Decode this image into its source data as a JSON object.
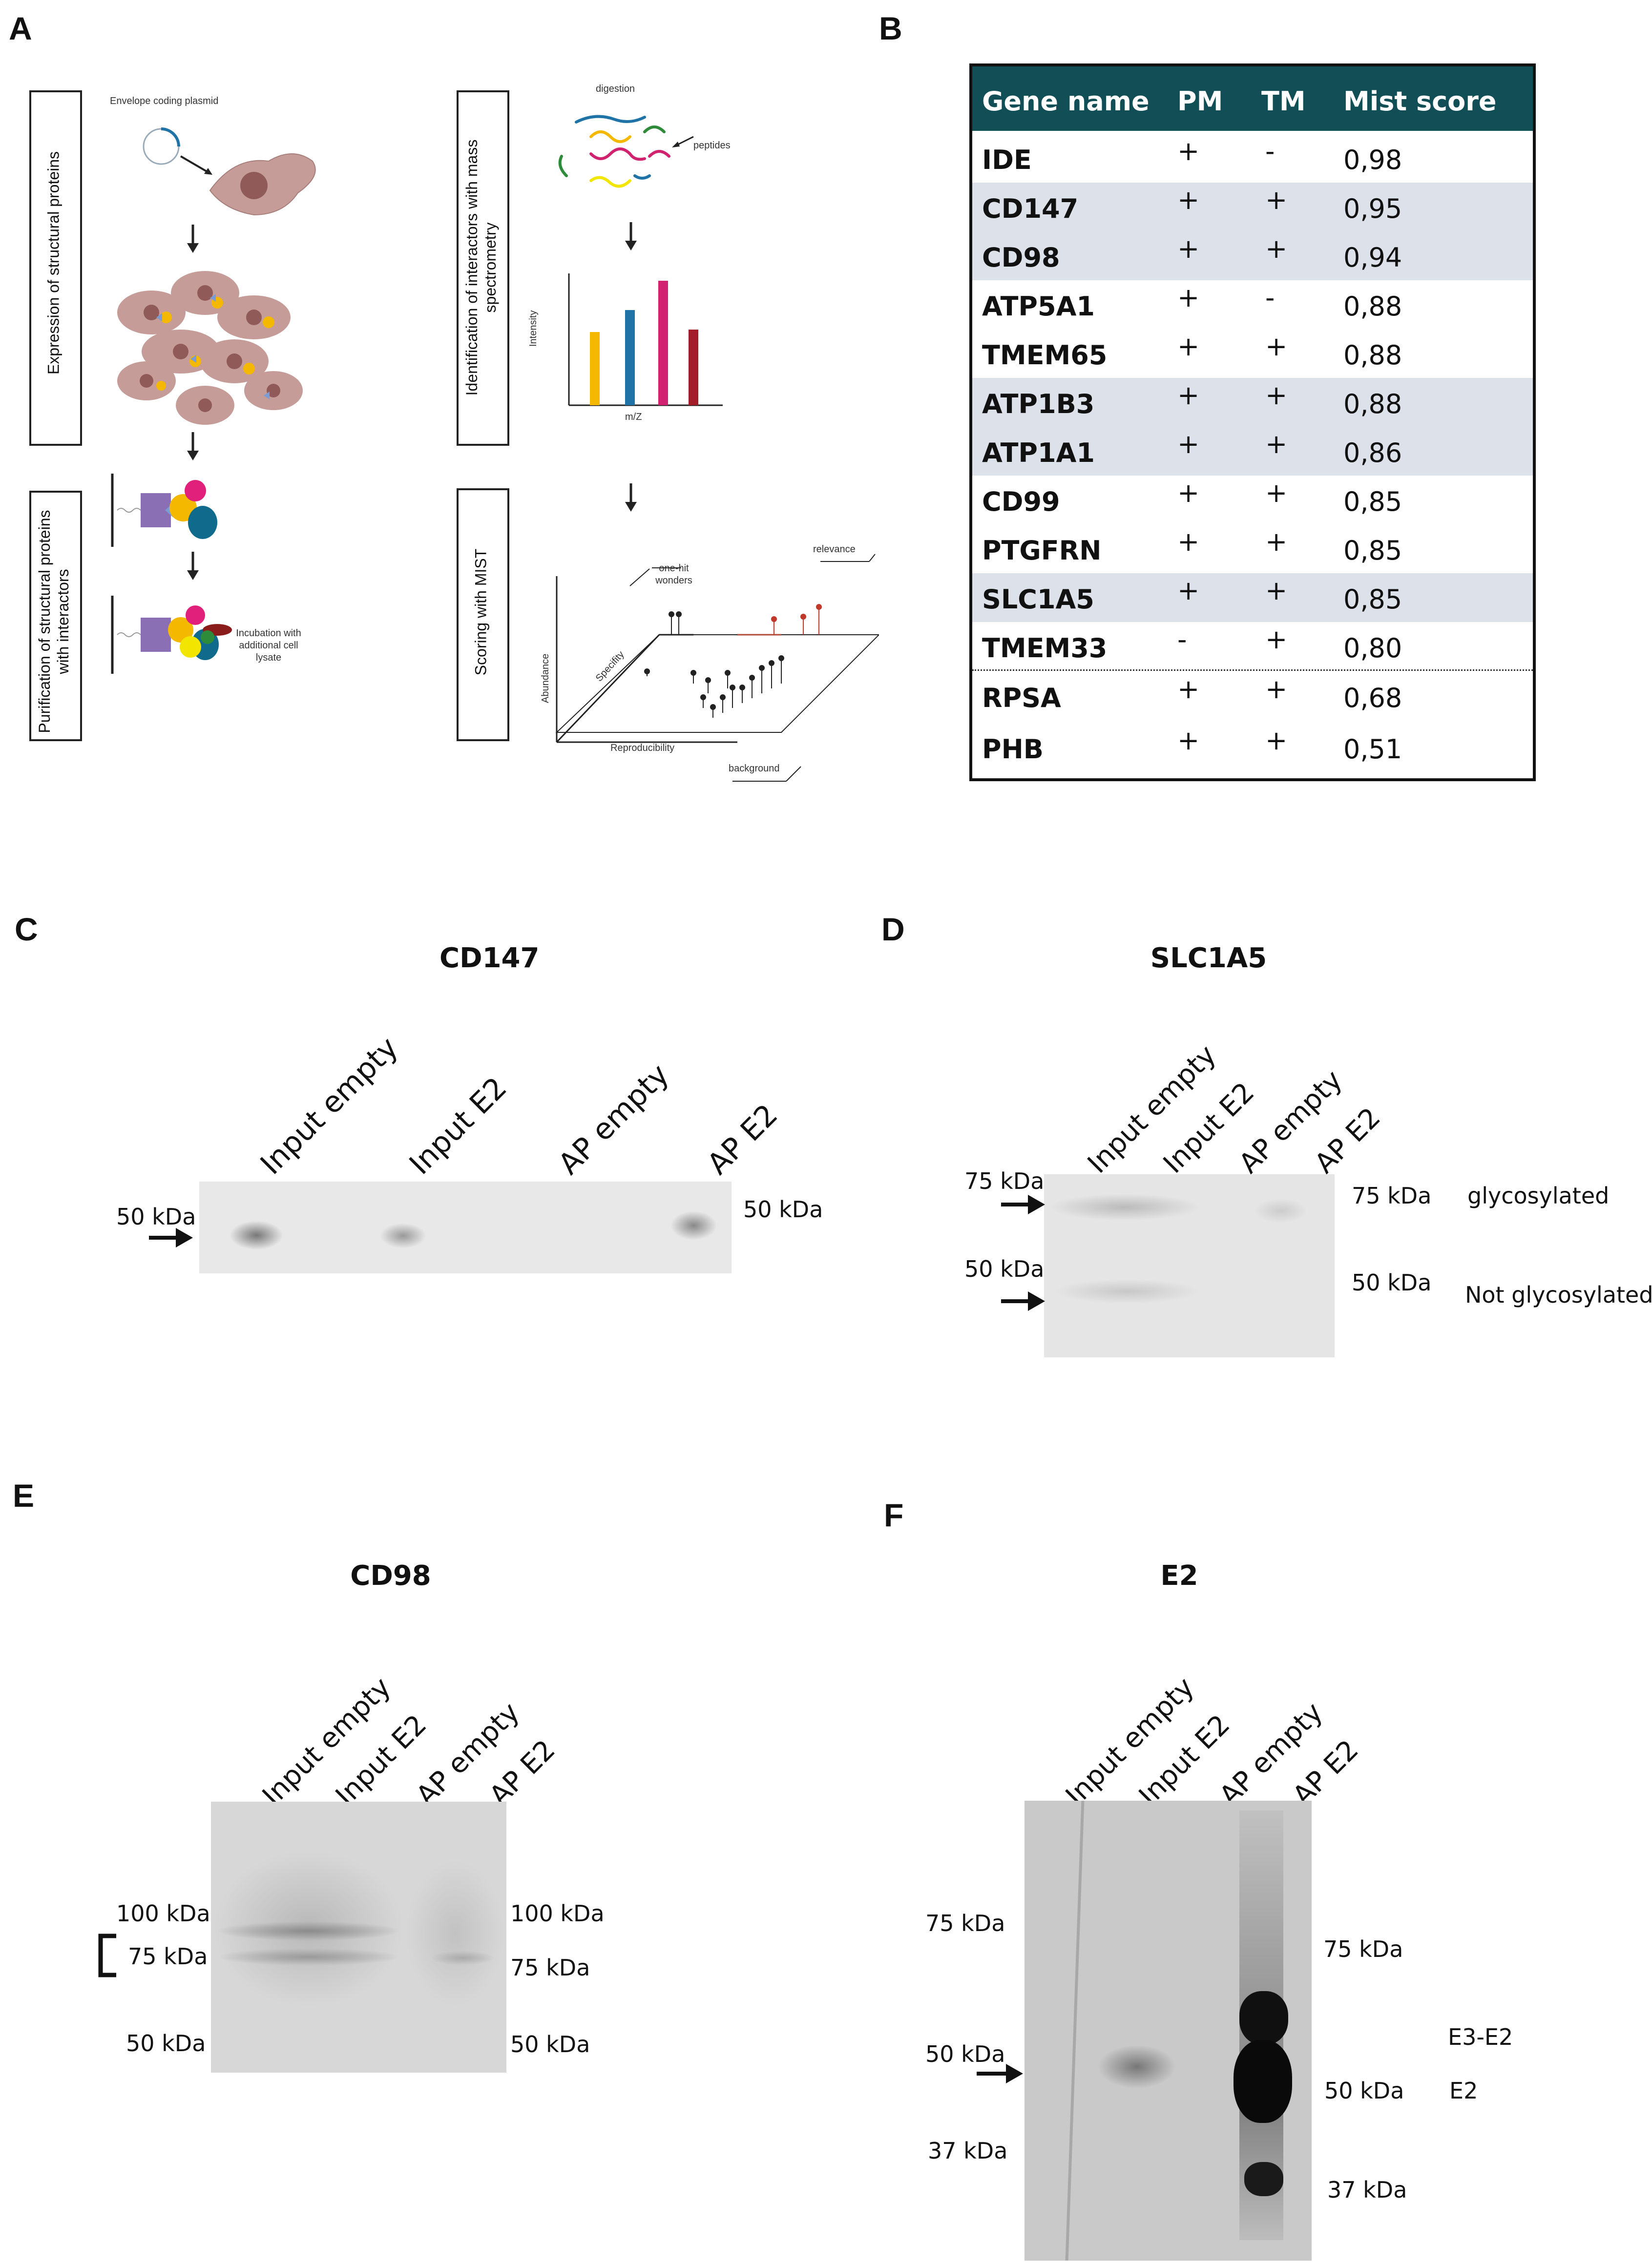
{
  "panels": {
    "A": "A",
    "B": "B",
    "C": "C",
    "D": "D",
    "E": "E",
    "F": "F"
  },
  "panelA": {
    "box1": "Expression of structural proteins",
    "box2": "Purification of structural proteins with interactors",
    "box3": "Identification of interactors with mass spectrometry",
    "box4": "Scoring with MIST",
    "envelope": "Envelope coding plasmid",
    "incubation": "Incubation with additional cell lysate",
    "digestion": "digestion",
    "peptides": "peptides",
    "intensity": "Intensity",
    "mz": "m/Z",
    "abundance": "Abundance",
    "specifity": "Specifity",
    "reproducibility": "Reproducibility",
    "onehit": "one-hit wonders",
    "relevance": "relevance",
    "background": "background",
    "bar_colors": [
      "#f5b800",
      "#1f73a6",
      "#d0226e",
      "#a41e2a"
    ]
  },
  "table": {
    "headers": [
      "Gene name",
      "PM",
      "TM",
      "Mist score"
    ],
    "header_color": "#114e55",
    "highlight_color": "#dde1ea",
    "rows": [
      {
        "gene": "IDE",
        "pm": "+",
        "tm": "-",
        "score": "0,98",
        "hl": false
      },
      {
        "gene": "CD147",
        "pm": "+",
        "tm": "+",
        "score": "0,95",
        "hl": true
      },
      {
        "gene": "CD98",
        "pm": "+",
        "tm": "+",
        "score": "0,94",
        "hl": true
      },
      {
        "gene": "ATP5A1",
        "pm": "+",
        "tm": "-",
        "score": "0,88",
        "hl": false
      },
      {
        "gene": "TMEM65",
        "pm": "+",
        "tm": "+",
        "score": "0,88",
        "hl": false
      },
      {
        "gene": "ATP1B3",
        "pm": "+",
        "tm": "+",
        "score": "0,88",
        "hl": true
      },
      {
        "gene": "ATP1A1",
        "pm": "+",
        "tm": "+",
        "score": "0,86",
        "hl": true
      },
      {
        "gene": "CD99",
        "pm": "+",
        "tm": "+",
        "score": "0,85",
        "hl": false
      },
      {
        "gene": "PTGFRN",
        "pm": "+",
        "tm": "+",
        "score": "0,85",
        "hl": false
      },
      {
        "gene": "SLC1A5",
        "pm": "+",
        "tm": "+",
        "score": "0,85",
        "hl": true
      },
      {
        "gene": "TMEM33",
        "pm": "-",
        "tm": "+",
        "score": "0,80",
        "hl": false
      },
      {
        "gene": "RPSA",
        "pm": "+",
        "tm": "+",
        "score": "0,68",
        "hl": false
      },
      {
        "gene": "PHB",
        "pm": "+",
        "tm": "+",
        "score": "0,51",
        "hl": false
      }
    ]
  },
  "C": {
    "title": "CD147",
    "lanes": [
      "Input empty",
      "Input E2",
      "AP empty",
      "AP E2"
    ],
    "left_marker": "50 kDa",
    "right_marker": "50 kDa"
  },
  "D": {
    "title": "SLC1A5",
    "lanes": [
      "Input empty",
      "Input E2",
      "AP empty",
      "AP E2"
    ],
    "left_markers": [
      "75 kDa",
      "50 kDa"
    ],
    "right_markers": [
      "75 kDa",
      "50 kDa"
    ],
    "annotations": [
      "glycosylated",
      "Not glycosylated"
    ]
  },
  "E": {
    "title": "CD98",
    "lanes": [
      "Input empty",
      "Input E2",
      "AP empty",
      "AP E2"
    ],
    "left_markers": [
      "100 kDa",
      "75 kDa",
      "50 kDa"
    ],
    "right_markers": [
      "100 kDa",
      "75 kDa",
      "50 kDa"
    ]
  },
  "F": {
    "title": "E2",
    "lanes": [
      "Input empty",
      "Input E2",
      "AP empty",
      "AP E2"
    ],
    "left_markers": [
      "75 kDa",
      "50 kDa",
      "37 kDa"
    ],
    "right_markers": [
      "75 kDa",
      "50 kDa",
      "37 kDa"
    ],
    "annotations": [
      "E3-E2",
      "E2"
    ]
  }
}
